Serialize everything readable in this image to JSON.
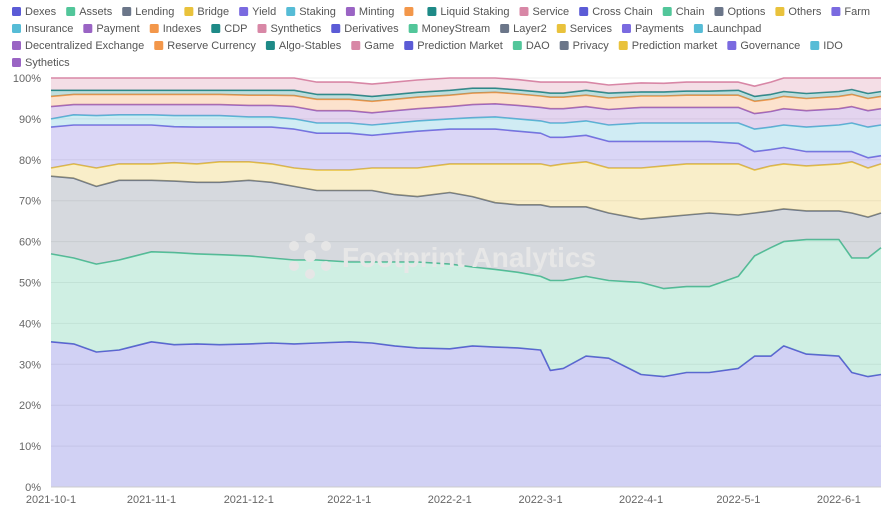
{
  "watermark": "Footprint Analytics",
  "chart_data": {
    "type": "area",
    "stacked": "percent",
    "grid": true,
    "legend_position": "top",
    "y_ticks": [
      "0%",
      "10%",
      "20%",
      "30%",
      "40%",
      "50%",
      "60%",
      "70%",
      "80%",
      "90%",
      "100%"
    ],
    "x_ticks": [
      "2021-10-1",
      "2021-11-1",
      "2021-12-1",
      "2022-1-1",
      "2022-2-1",
      "2022-3-1",
      "2022-4-1",
      "2022-5-1",
      "2022-6-1"
    ],
    "ylim": [
      0,
      100
    ],
    "legend": [
      {
        "name": "Dexes",
        "color": "#5b5bd6"
      },
      {
        "name": "Assets",
        "color": "#52c69a"
      },
      {
        "name": "Lending",
        "color": "#6b7689"
      },
      {
        "name": "Bridge",
        "color": "#e9c23c"
      },
      {
        "name": "Yield",
        "color": "#7a6ae0"
      },
      {
        "name": "Staking",
        "color": "#56bcd6"
      },
      {
        "name": "Minting",
        "color": "#9a64c4"
      },
      {
        "name": "",
        "color": "#f3974a"
      },
      {
        "name": "Liquid Staking",
        "color": "#1e8a87"
      },
      {
        "name": "Service",
        "color": "#d887a6"
      },
      {
        "name": "Cross Chain",
        "color": "#5b5bd6"
      },
      {
        "name": "Chain",
        "color": "#52c69a"
      },
      {
        "name": "Options",
        "color": "#6b7689"
      },
      {
        "name": "Others",
        "color": "#e9c23c"
      },
      {
        "name": "Farm",
        "color": "#7a6ae0"
      },
      {
        "name": "Insurance",
        "color": "#56bcd6"
      },
      {
        "name": "Payment",
        "color": "#9a64c4"
      },
      {
        "name": "Indexes",
        "color": "#f3974a"
      },
      {
        "name": "CDP",
        "color": "#1e8a87"
      },
      {
        "name": "Synthetics",
        "color": "#d887a6"
      },
      {
        "name": "Derivatives",
        "color": "#5b5bd6"
      },
      {
        "name": "MoneyStream",
        "color": "#52c69a"
      },
      {
        "name": "Layer2",
        "color": "#6b7689"
      },
      {
        "name": "Services",
        "color": "#e9c23c"
      },
      {
        "name": "Payments",
        "color": "#7a6ae0"
      },
      {
        "name": "Launchpad",
        "color": "#56bcd6"
      },
      {
        "name": "Decentralized Exchange",
        "color": "#9a64c4"
      },
      {
        "name": "Reserve Currency",
        "color": "#f3974a"
      },
      {
        "name": "Algo-Stables",
        "color": "#1e8a87"
      },
      {
        "name": "Game",
        "color": "#d887a6"
      },
      {
        "name": "Prediction Market",
        "color": "#5b5bd6"
      },
      {
        "name": "DAO",
        "color": "#52c69a"
      },
      {
        "name": "Privacy",
        "color": "#6b7689"
      },
      {
        "name": "Prediction market",
        "color": "#e9c23c"
      },
      {
        "name": "Governance",
        "color": "#7a6ae0"
      },
      {
        "name": "IDO",
        "color": "#56bcd6"
      },
      {
        "name": "Sythetics",
        "color": "#9a64c4"
      }
    ],
    "x_dates": [
      "2021-10-01",
      "2021-10-08",
      "2021-10-15",
      "2021-10-22",
      "2021-11-01",
      "2021-11-08",
      "2021-11-15",
      "2021-11-22",
      "2021-12-01",
      "2021-12-08",
      "2021-12-15",
      "2021-12-22",
      "2022-01-01",
      "2022-01-08",
      "2022-01-15",
      "2022-01-22",
      "2022-02-01",
      "2022-02-08",
      "2022-02-15",
      "2022-02-22",
      "2022-03-01",
      "2022-03-04",
      "2022-03-08",
      "2022-03-15",
      "2022-03-22",
      "2022-04-01",
      "2022-04-08",
      "2022-04-15",
      "2022-04-22",
      "2022-05-01",
      "2022-05-06",
      "2022-05-11",
      "2022-05-15",
      "2022-05-22",
      "2022-06-01",
      "2022-06-05",
      "2022-06-10",
      "2022-06-14"
    ],
    "series": [
      {
        "name": "Dexes",
        "color": "#5b5bd6",
        "values": [
          35.5,
          35.0,
          33.0,
          33.5,
          35.5,
          34.8,
          35.0,
          34.8,
          35.0,
          35.2,
          35.0,
          35.2,
          35.5,
          35.2,
          34.5,
          34.0,
          33.8,
          34.5,
          34.2,
          34.0,
          33.5,
          28.5,
          29.0,
          32.0,
          31.5,
          27.5,
          27.0,
          28.0,
          28.0,
          29.0,
          32.0,
          32.0,
          34.5,
          32.5,
          32.0,
          28.0,
          27.0,
          27.5
        ]
      },
      {
        "name": "Assets",
        "color": "#52c69a",
        "values": [
          21.5,
          21.0,
          21.5,
          22.0,
          22.0,
          22.5,
          22.0,
          22.0,
          21.5,
          20.8,
          20.5,
          20.3,
          19.5,
          19.8,
          20.5,
          21.0,
          20.7,
          19.3,
          19.0,
          18.5,
          18.0,
          22.0,
          21.5,
          19.5,
          19.0,
          22.5,
          21.5,
          21.0,
          21.0,
          22.5,
          24.5,
          26.5,
          25.5,
          28.0,
          28.5,
          28.0,
          29.0,
          31.0
        ]
      },
      {
        "name": "Lending",
        "color": "#6b7689",
        "values": [
          19.0,
          19.5,
          19.0,
          19.5,
          17.5,
          17.5,
          17.5,
          17.7,
          18.5,
          18.5,
          18.0,
          17.0,
          17.5,
          17.5,
          16.5,
          16.0,
          17.5,
          17.2,
          16.3,
          16.5,
          17.5,
          18.0,
          18.0,
          17.0,
          16.5,
          15.5,
          17.5,
          17.5,
          18.0,
          15.0,
          10.5,
          9.0,
          8.0,
          7.0,
          7.0,
          11.0,
          10.0,
          8.5
        ]
      },
      {
        "name": "Bridge",
        "color": "#e9c23c",
        "values": [
          2.0,
          3.5,
          4.5,
          4.0,
          4.0,
          4.5,
          4.5,
          5.0,
          4.5,
          4.5,
          4.5,
          5.0,
          5.0,
          5.5,
          6.5,
          7.0,
          7.0,
          8.0,
          9.5,
          10.0,
          10.0,
          10.0,
          10.5,
          11.0,
          11.0,
          12.5,
          12.5,
          12.5,
          12.0,
          12.5,
          10.5,
          11.0,
          11.0,
          11.0,
          11.5,
          12.5,
          12.0,
          12.0
        ]
      },
      {
        "name": "Yield",
        "color": "#7a6ae0",
        "values": [
          10.0,
          9.5,
          10.5,
          9.5,
          9.5,
          8.8,
          9.0,
          8.5,
          8.5,
          9.0,
          9.5,
          9.0,
          9.0,
          8.0,
          8.5,
          9.0,
          8.5,
          8.5,
          8.5,
          8.0,
          7.5,
          7.0,
          6.5,
          6.5,
          6.5,
          6.5,
          6.0,
          5.5,
          5.5,
          5.0,
          4.5,
          4.0,
          4.0,
          3.5,
          3.0,
          2.5,
          2.5,
          2.0
        ]
      },
      {
        "name": "Staking",
        "color": "#56bcd6",
        "values": [
          2.0,
          2.5,
          2.3,
          2.5,
          2.5,
          2.7,
          2.8,
          2.8,
          2.5,
          2.5,
          2.5,
          2.5,
          2.5,
          2.5,
          2.5,
          2.5,
          2.5,
          2.8,
          3.0,
          3.0,
          3.0,
          3.5,
          3.5,
          3.5,
          4.0,
          4.5,
          4.5,
          4.5,
          4.5,
          5.0,
          5.5,
          5.5,
          5.5,
          6.0,
          6.5,
          7.0,
          7.5,
          7.5
        ]
      },
      {
        "name": "Minting",
        "color": "#9a64c4",
        "values": [
          3.0,
          2.5,
          2.7,
          2.5,
          2.5,
          2.7,
          2.7,
          2.7,
          2.8,
          2.8,
          3.0,
          3.0,
          3.0,
          3.0,
          3.0,
          3.0,
          3.0,
          3.2,
          3.2,
          3.3,
          3.3,
          3.5,
          3.5,
          3.5,
          3.8,
          3.8,
          3.8,
          3.8,
          3.8,
          3.8,
          3.8,
          3.8,
          4.0,
          4.0,
          4.0,
          4.0,
          4.0,
          4.0
        ]
      },
      {
        "name": "Others (combined)",
        "color": "#f3974a",
        "values": [
          2.5,
          2.5,
          2.5,
          2.5,
          2.5,
          2.5,
          2.5,
          2.5,
          2.5,
          2.5,
          2.7,
          2.8,
          2.8,
          2.8,
          2.8,
          2.8,
          2.8,
          2.8,
          2.8,
          2.8,
          2.8,
          2.8,
          2.8,
          2.8,
          2.8,
          2.8,
          2.8,
          3.0,
          3.0,
          3.0,
          3.0,
          3.0,
          3.0,
          3.0,
          3.0,
          3.0,
          3.0,
          3.0
        ]
      },
      {
        "name": "Liquid Staking (combined)",
        "color": "#1e8a87",
        "values": [
          1.5,
          1.0,
          1.0,
          1.0,
          1.0,
          1.0,
          1.0,
          1.0,
          1.2,
          1.2,
          1.3,
          1.2,
          1.2,
          1.2,
          1.2,
          1.2,
          1.2,
          1.2,
          1.0,
          1.0,
          1.0,
          1.0,
          1.0,
          1.2,
          1.2,
          1.0,
          1.0,
          1.0,
          1.0,
          1.2,
          1.2,
          1.2,
          1.2,
          1.2,
          1.2,
          1.2,
          1.2,
          1.2
        ]
      },
      {
        "name": "Service (combined)",
        "color": "#d887a6",
        "values": [
          3.0,
          3.0,
          3.0,
          3.0,
          3.0,
          3.0,
          3.0,
          3.0,
          3.0,
          3.0,
          3.0,
          3.0,
          3.0,
          3.0,
          3.0,
          3.0,
          3.0,
          2.5,
          2.5,
          2.5,
          2.4,
          2.7,
          2.7,
          2.0,
          2.0,
          2.2,
          2.1,
          2.2,
          2.2,
          2.0,
          2.5,
          3.0,
          3.3,
          3.8,
          3.3,
          3.2,
          3.8,
          3.3
        ]
      }
    ]
  }
}
